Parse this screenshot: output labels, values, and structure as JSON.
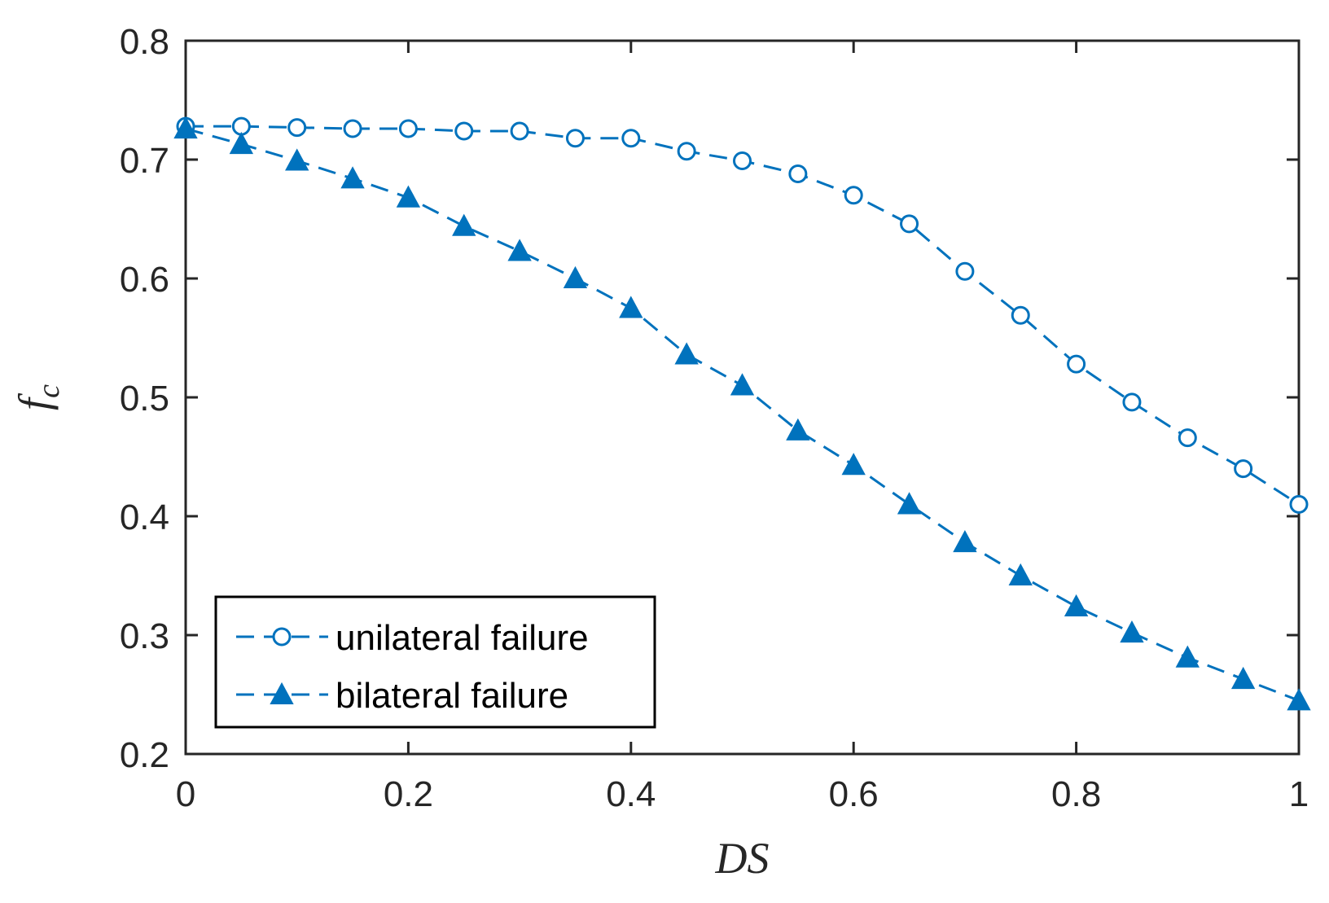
{
  "chart_data": {
    "type": "line",
    "xlabel": "DS",
    "ylabel_main": "f",
    "ylabel_sub": "c",
    "xlim": [
      0,
      1
    ],
    "ylim": [
      0.2,
      0.8
    ],
    "xticks": [
      0,
      0.2,
      0.4,
      0.6,
      0.8,
      1
    ],
    "xtick_labels": [
      "0",
      "0.2",
      "0.4",
      "0.6",
      "0.8",
      "1"
    ],
    "yticks": [
      0.2,
      0.3,
      0.4,
      0.5,
      0.6,
      0.7,
      0.8
    ],
    "ytick_labels": [
      "0.2",
      "0.3",
      "0.4",
      "0.5",
      "0.6",
      "0.7",
      "0.8"
    ],
    "grid": false,
    "legend_position": "bottom-left",
    "x": [
      0,
      0.05,
      0.1,
      0.15,
      0.2,
      0.25,
      0.3,
      0.35,
      0.4,
      0.45,
      0.5,
      0.55,
      0.6,
      0.65,
      0.7,
      0.75,
      0.8,
      0.85,
      0.9,
      0.95,
      1
    ],
    "series": [
      {
        "name": "unilateral failure",
        "marker": "circle",
        "line_style": "dashed",
        "color": "#0072BD",
        "values": [
          0.728,
          0.728,
          0.727,
          0.726,
          0.726,
          0.724,
          0.724,
          0.718,
          0.718,
          0.707,
          0.699,
          0.688,
          0.67,
          0.646,
          0.606,
          0.569,
          0.528,
          0.496,
          0.466,
          0.44,
          0.41
        ]
      },
      {
        "name": "bilateral failure",
        "marker": "filled-triangle",
        "line_style": "dashed",
        "color": "#0072BD",
        "values": [
          0.726,
          0.713,
          0.699,
          0.684,
          0.668,
          0.644,
          0.623,
          0.6,
          0.575,
          0.536,
          0.51,
          0.472,
          0.443,
          0.41,
          0.378,
          0.35,
          0.324,
          0.302,
          0.281,
          0.263,
          0.245
        ]
      }
    ]
  }
}
